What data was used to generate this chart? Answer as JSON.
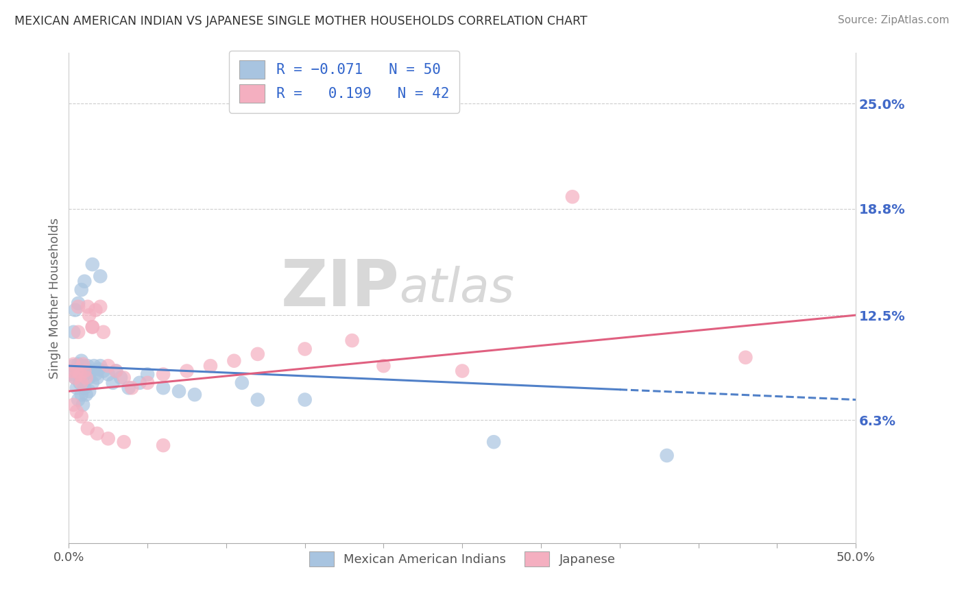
{
  "title": "MEXICAN AMERICAN INDIAN VS JAPANESE SINGLE MOTHER HOUSEHOLDS CORRELATION CHART",
  "source": "Source: ZipAtlas.com",
  "ylabel": "Single Mother Households",
  "yticks_right": [
    0.063,
    0.125,
    0.188,
    0.25
  ],
  "ytick_labels_right": [
    "6.3%",
    "12.5%",
    "18.8%",
    "25.0%"
  ],
  "xlim": [
    0.0,
    0.5
  ],
  "ylim": [
    -0.01,
    0.28
  ],
  "blue_R": -0.071,
  "blue_N": 50,
  "pink_R": 0.199,
  "pink_N": 42,
  "blue_color": "#a8c4e0",
  "pink_color": "#f4afc0",
  "blue_line_color": "#5080c8",
  "pink_line_color": "#e06080",
  "watermark_zip": "ZIP",
  "watermark_atlas": "atlas",
  "legend_label_blue": "Mexican American Indians",
  "legend_label_pink": "Japanese",
  "blue_x": [
    0.002,
    0.003,
    0.004,
    0.005,
    0.005,
    0.006,
    0.006,
    0.007,
    0.007,
    0.008,
    0.008,
    0.009,
    0.009,
    0.01,
    0.01,
    0.011,
    0.011,
    0.012,
    0.013,
    0.013,
    0.014,
    0.015,
    0.016,
    0.017,
    0.018,
    0.019,
    0.02,
    0.022,
    0.025,
    0.028,
    0.03,
    0.033,
    0.038,
    0.045,
    0.05,
    0.06,
    0.07,
    0.08,
    0.12,
    0.15,
    0.003,
    0.004,
    0.006,
    0.008,
    0.01,
    0.015,
    0.02,
    0.11,
    0.27,
    0.38
  ],
  "blue_y": [
    0.09,
    0.095,
    0.088,
    0.093,
    0.082,
    0.096,
    0.075,
    0.092,
    0.085,
    0.098,
    0.078,
    0.095,
    0.072,
    0.09,
    0.082,
    0.093,
    0.078,
    0.095,
    0.088,
    0.08,
    0.092,
    0.085,
    0.095,
    0.09,
    0.088,
    0.093,
    0.095,
    0.092,
    0.09,
    0.085,
    0.092,
    0.088,
    0.082,
    0.085,
    0.09,
    0.082,
    0.08,
    0.078,
    0.075,
    0.075,
    0.115,
    0.128,
    0.132,
    0.14,
    0.145,
    0.155,
    0.148,
    0.085,
    0.05,
    0.042
  ],
  "pink_x": [
    0.002,
    0.003,
    0.004,
    0.005,
    0.006,
    0.007,
    0.008,
    0.009,
    0.01,
    0.011,
    0.012,
    0.013,
    0.015,
    0.017,
    0.02,
    0.022,
    0.025,
    0.03,
    0.035,
    0.04,
    0.05,
    0.06,
    0.075,
    0.09,
    0.105,
    0.12,
    0.15,
    0.18,
    0.2,
    0.25,
    0.003,
    0.005,
    0.008,
    0.012,
    0.018,
    0.025,
    0.035,
    0.06,
    0.32,
    0.43,
    0.006,
    0.015
  ],
  "pink_y": [
    0.092,
    0.096,
    0.088,
    0.092,
    0.13,
    0.09,
    0.085,
    0.096,
    0.092,
    0.088,
    0.13,
    0.125,
    0.118,
    0.128,
    0.13,
    0.115,
    0.095,
    0.092,
    0.088,
    0.082,
    0.085,
    0.09,
    0.092,
    0.095,
    0.098,
    0.102,
    0.105,
    0.11,
    0.095,
    0.092,
    0.072,
    0.068,
    0.065,
    0.058,
    0.055,
    0.052,
    0.05,
    0.048,
    0.195,
    0.1,
    0.115,
    0.118
  ]
}
